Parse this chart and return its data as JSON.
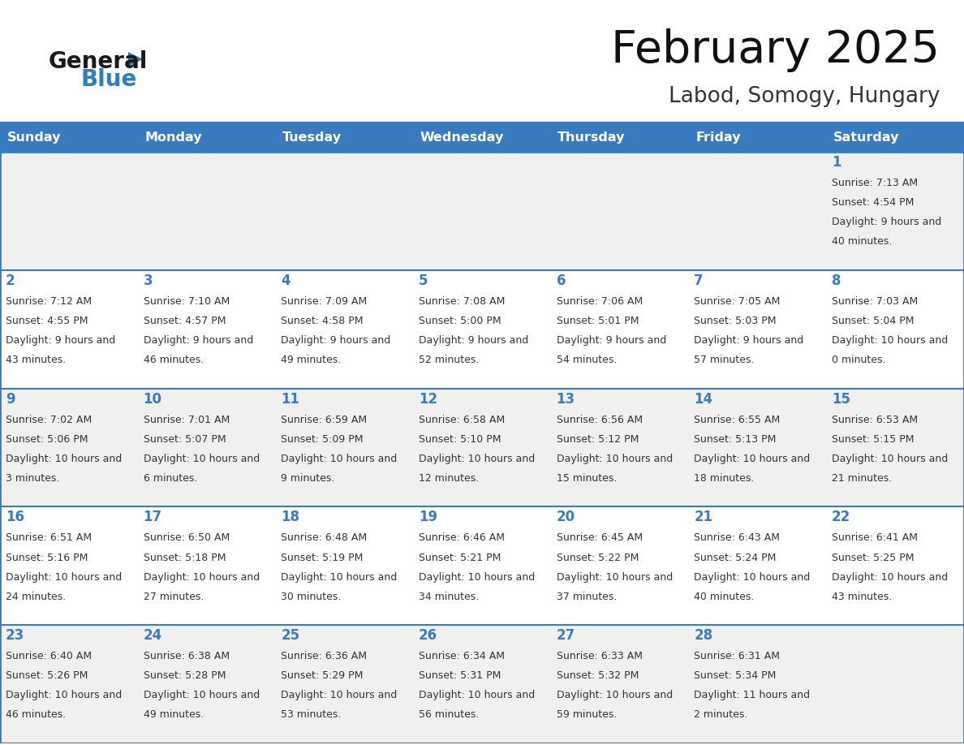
{
  "title": "February 2025",
  "subtitle": "Labod, Somogy, Hungary",
  "header_color": "#3a7abf",
  "header_text_color": "#ffffff",
  "days_of_week": [
    "Sunday",
    "Monday",
    "Tuesday",
    "Wednesday",
    "Thursday",
    "Friday",
    "Saturday"
  ],
  "bg_color": "#ffffff",
  "cell_bg_light": "#f0f0f0",
  "border_color": "#3a7abf",
  "day_number_color": "#3a7abf",
  "text_color": "#333333",
  "logo_general_color": "#1a1a1a",
  "logo_blue_color": "#2e7dbf",
  "logo_triangle_color": "#2e7dbf",
  "calendar_data": [
    [
      null,
      null,
      null,
      null,
      null,
      null,
      {
        "day": 1,
        "sunrise": "7:13 AM",
        "sunset": "4:54 PM",
        "daylight": "9 hours and 40 minutes."
      }
    ],
    [
      {
        "day": 2,
        "sunrise": "7:12 AM",
        "sunset": "4:55 PM",
        "daylight": "9 hours and 43 minutes."
      },
      {
        "day": 3,
        "sunrise": "7:10 AM",
        "sunset": "4:57 PM",
        "daylight": "9 hours and 46 minutes."
      },
      {
        "day": 4,
        "sunrise": "7:09 AM",
        "sunset": "4:58 PM",
        "daylight": "9 hours and 49 minutes."
      },
      {
        "day": 5,
        "sunrise": "7:08 AM",
        "sunset": "5:00 PM",
        "daylight": "9 hours and 52 minutes."
      },
      {
        "day": 6,
        "sunrise": "7:06 AM",
        "sunset": "5:01 PM",
        "daylight": "9 hours and 54 minutes."
      },
      {
        "day": 7,
        "sunrise": "7:05 AM",
        "sunset": "5:03 PM",
        "daylight": "9 hours and 57 minutes."
      },
      {
        "day": 8,
        "sunrise": "7:03 AM",
        "sunset": "5:04 PM",
        "daylight": "10 hours and 0 minutes."
      }
    ],
    [
      {
        "day": 9,
        "sunrise": "7:02 AM",
        "sunset": "5:06 PM",
        "daylight": "10 hours and 3 minutes."
      },
      {
        "day": 10,
        "sunrise": "7:01 AM",
        "sunset": "5:07 PM",
        "daylight": "10 hours and 6 minutes."
      },
      {
        "day": 11,
        "sunrise": "6:59 AM",
        "sunset": "5:09 PM",
        "daylight": "10 hours and 9 minutes."
      },
      {
        "day": 12,
        "sunrise": "6:58 AM",
        "sunset": "5:10 PM",
        "daylight": "10 hours and 12 minutes."
      },
      {
        "day": 13,
        "sunrise": "6:56 AM",
        "sunset": "5:12 PM",
        "daylight": "10 hours and 15 minutes."
      },
      {
        "day": 14,
        "sunrise": "6:55 AM",
        "sunset": "5:13 PM",
        "daylight": "10 hours and 18 minutes."
      },
      {
        "day": 15,
        "sunrise": "6:53 AM",
        "sunset": "5:15 PM",
        "daylight": "10 hours and 21 minutes."
      }
    ],
    [
      {
        "day": 16,
        "sunrise": "6:51 AM",
        "sunset": "5:16 PM",
        "daylight": "10 hours and 24 minutes."
      },
      {
        "day": 17,
        "sunrise": "6:50 AM",
        "sunset": "5:18 PM",
        "daylight": "10 hours and 27 minutes."
      },
      {
        "day": 18,
        "sunrise": "6:48 AM",
        "sunset": "5:19 PM",
        "daylight": "10 hours and 30 minutes."
      },
      {
        "day": 19,
        "sunrise": "6:46 AM",
        "sunset": "5:21 PM",
        "daylight": "10 hours and 34 minutes."
      },
      {
        "day": 20,
        "sunrise": "6:45 AM",
        "sunset": "5:22 PM",
        "daylight": "10 hours and 37 minutes."
      },
      {
        "day": 21,
        "sunrise": "6:43 AM",
        "sunset": "5:24 PM",
        "daylight": "10 hours and 40 minutes."
      },
      {
        "day": 22,
        "sunrise": "6:41 AM",
        "sunset": "5:25 PM",
        "daylight": "10 hours and 43 minutes."
      }
    ],
    [
      {
        "day": 23,
        "sunrise": "6:40 AM",
        "sunset": "5:26 PM",
        "daylight": "10 hours and 46 minutes."
      },
      {
        "day": 24,
        "sunrise": "6:38 AM",
        "sunset": "5:28 PM",
        "daylight": "10 hours and 49 minutes."
      },
      {
        "day": 25,
        "sunrise": "6:36 AM",
        "sunset": "5:29 PM",
        "daylight": "10 hours and 53 minutes."
      },
      {
        "day": 26,
        "sunrise": "6:34 AM",
        "sunset": "5:31 PM",
        "daylight": "10 hours and 56 minutes."
      },
      {
        "day": 27,
        "sunrise": "6:33 AM",
        "sunset": "5:32 PM",
        "daylight": "10 hours and 59 minutes."
      },
      {
        "day": 28,
        "sunrise": "6:31 AM",
        "sunset": "5:34 PM",
        "daylight": "11 hours and 2 minutes."
      },
      null
    ]
  ]
}
